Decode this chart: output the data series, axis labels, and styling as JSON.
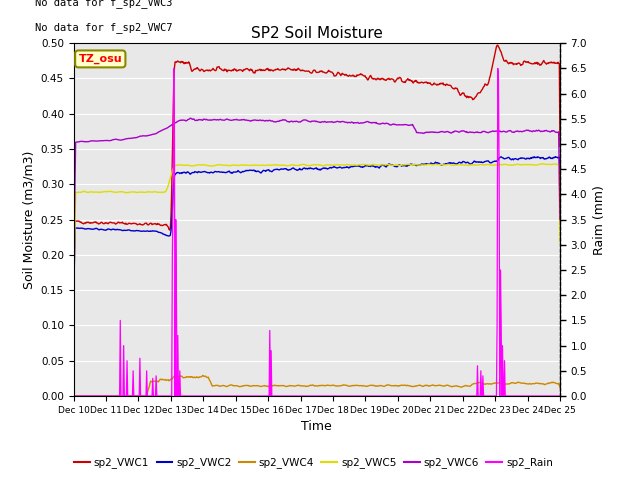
{
  "title": "SP2 Soil Moisture",
  "ylabel_left": "Soil Moisture (m3/m3)",
  "ylabel_right": "Raim (mm)",
  "xlabel": "Time",
  "no_data_text": [
    "No data for f_sp2_VWC3",
    "No data for f_sp2_VWC7"
  ],
  "tz_label": "TZ_osu",
  "x_start": 10,
  "x_end": 25,
  "x_ticks": [
    10,
    11,
    12,
    13,
    14,
    15,
    16,
    17,
    18,
    19,
    20,
    21,
    22,
    23,
    24,
    25
  ],
  "x_tick_labels": [
    "Dec 10",
    "Dec 11",
    "Dec 12",
    "Dec 13",
    "Dec 14",
    "Dec 15",
    "Dec 16",
    "Dec 17",
    "Dec 18",
    "Dec 19",
    "Dec 20",
    "Dec 21",
    "Dec 22",
    "Dec 23",
    "Dec 24",
    "Dec 25"
  ],
  "ylim_left": [
    0.0,
    0.5
  ],
  "ylim_right": [
    0.0,
    7.0
  ],
  "yticks_left": [
    0.0,
    0.05,
    0.1,
    0.15,
    0.2,
    0.25,
    0.3,
    0.35,
    0.4,
    0.45,
    0.5
  ],
  "yticks_right": [
    0.0,
    0.5,
    1.0,
    1.5,
    2.0,
    2.5,
    3.0,
    3.5,
    4.0,
    4.5,
    5.0,
    5.5,
    6.0,
    6.5,
    7.0
  ],
  "colors": {
    "VWC1": "#cc0000",
    "VWC2": "#0000cc",
    "VWC4": "#cc8800",
    "VWC5": "#dddd00",
    "VWC6": "#aa00cc",
    "Rain": "#ff00ff"
  },
  "bg_color": "#e8e8e8",
  "legend_entries": [
    {
      "label": "sp2_VWC1",
      "color": "#cc0000"
    },
    {
      "label": "sp2_VWC2",
      "color": "#0000cc"
    },
    {
      "label": "sp2_VWC4",
      "color": "#cc8800"
    },
    {
      "label": "sp2_VWC5",
      "color": "#dddd00"
    },
    {
      "label": "sp2_VWC6",
      "color": "#aa00cc"
    },
    {
      "label": "sp2_Rain",
      "color": "#ff00ff"
    }
  ]
}
